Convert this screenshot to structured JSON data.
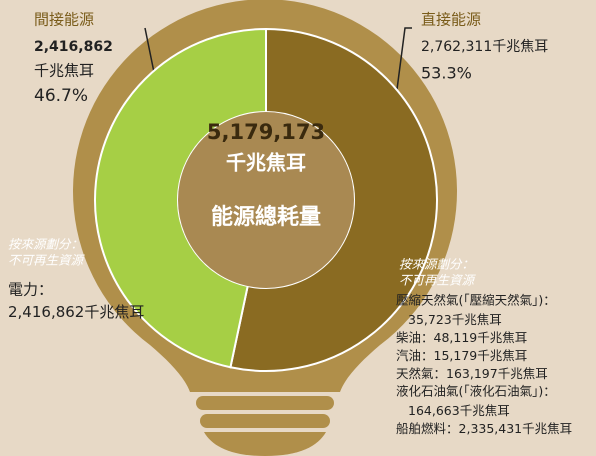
{
  "chart_data": {
    "type": "donut",
    "unit": "千兆焦耳",
    "center": {
      "total": 5179173,
      "total_label": "5,179,173",
      "caption": "能源總耗量"
    },
    "slices": [
      {
        "name": "直接能源",
        "value": 2762311,
        "value_label": "2,762,311",
        "percent": 53.3,
        "percent_label": "53.3%",
        "color": "#8a6b22"
      },
      {
        "name": "間接能源",
        "value": 2416862,
        "value_label": "2,416,862",
        "percent": 46.7,
        "percent_label": "46.7%",
        "color": "#a6cf45"
      }
    ],
    "breakdowns": [
      {
        "note": [
          "按來源劃分：",
          "不可再生資源"
        ],
        "items": [
          {
            "label": "電力：",
            "value": 2416862,
            "value_label": "2,416,862"
          }
        ]
      },
      {
        "note": [
          "按來源劃分：",
          "不可再生資源"
        ],
        "items": [
          {
            "label": "壓縮天然氣(「壓縮天然氣」)：",
            "value": 35723,
            "value_label": "35,723"
          },
          {
            "label": "柴油：",
            "value": 48119,
            "value_label": "48,119"
          },
          {
            "label": "汽油：",
            "value": 15179,
            "value_label": "15,179"
          },
          {
            "label": "天然氣：",
            "value": 163197,
            "value_label": "163,197"
          },
          {
            "label": "液化石油氣(「液化石油氣」)：",
            "value": 164663,
            "value_label": "164,663"
          },
          {
            "label": "船舶燃料：",
            "value": 2335431,
            "value_label": "2,335,431"
          }
        ]
      }
    ]
  }
}
